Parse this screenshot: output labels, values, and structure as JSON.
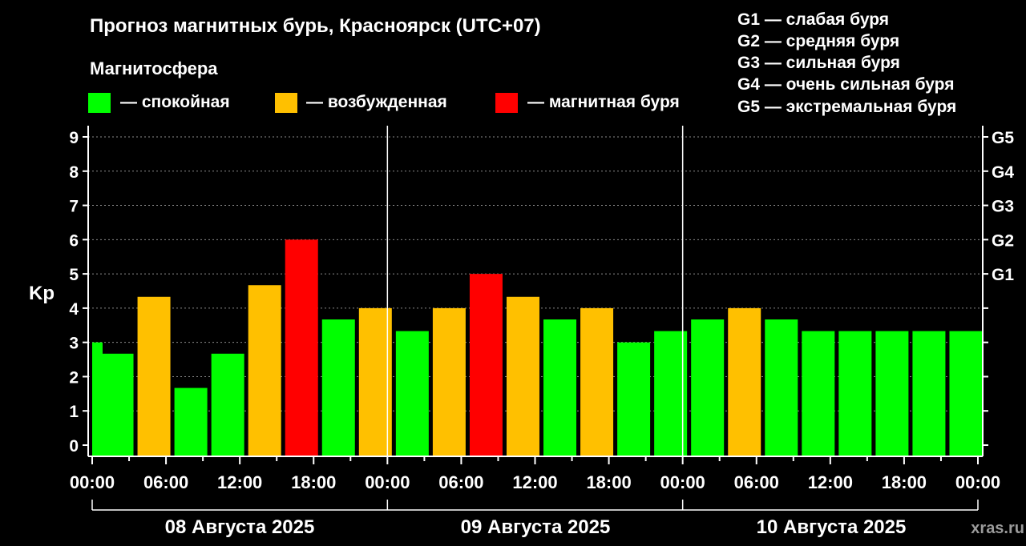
{
  "header": {
    "title": "Прогноз магнитных бурь, Красноярск (UTC+07)",
    "subtitle": "Магнитосфера",
    "legend": [
      {
        "label": "— спокойная",
        "color": "#00ff00"
      },
      {
        "label": "— возбужденная",
        "color": "#ffc000"
      },
      {
        "label": "— магнитная буря",
        "color": "#ff0000"
      }
    ],
    "storm_scale": [
      "G1 — слабая буря",
      "G2 — средняя буря",
      "G3 — сильная буря",
      "G4 — очень сильная буря",
      "G5 — экстремальная буря"
    ],
    "credit": "xras.ru"
  },
  "chart_data": {
    "type": "bar",
    "ylabel": "Kp",
    "ylim": [
      0,
      9
    ],
    "yticks": [
      "0",
      "1",
      "2",
      "3",
      "4",
      "5",
      "6",
      "7",
      "8",
      "9"
    ],
    "right_ticks": [
      "G1",
      "G2",
      "G3",
      "G4",
      "G5"
    ],
    "right_tick_values": [
      5,
      6,
      7,
      8,
      9
    ],
    "grid": true,
    "x_tick_labels": [
      "00:00",
      "06:00",
      "12:00",
      "18:00",
      "00:00",
      "06:00",
      "12:00",
      "18:00",
      "00:00",
      "06:00",
      "12:00",
      "18:00",
      "00:00"
    ],
    "dates": [
      "08 Августа 2025",
      "09 Августа 2025",
      "10 Августа 2025"
    ],
    "interval_hours": 3,
    "categories": [
      "08.08 00:00",
      "08.08 03:00",
      "08.08 06:00",
      "08.08 09:00",
      "08.08 12:00",
      "08.08 15:00",
      "08.08 18:00",
      "08.08 21:00",
      "09.08 00:00",
      "09.08 03:00",
      "09.08 06:00",
      "09.08 09:00",
      "09.08 12:00",
      "09.08 15:00",
      "09.08 18:00",
      "09.08 21:00",
      "10.08 00:00",
      "10.08 03:00",
      "10.08 06:00",
      "10.08 09:00",
      "10.08 12:00",
      "10.08 15:00",
      "10.08 18:00",
      "10.08 21:00"
    ],
    "leading_value": 3.0,
    "values": [
      2.67,
      4.33,
      1.67,
      2.67,
      4.67,
      6.0,
      3.67,
      4.0,
      3.33,
      4.0,
      5.0,
      4.33,
      3.67,
      4.0,
      3.0,
      3.33,
      3.67,
      4.0,
      3.67,
      3.33,
      3.33,
      3.33,
      3.33,
      3.33
    ],
    "colors": {
      "quiet": "#00ff00",
      "unsettled": "#ffc000",
      "storm": "#ff0000"
    }
  }
}
